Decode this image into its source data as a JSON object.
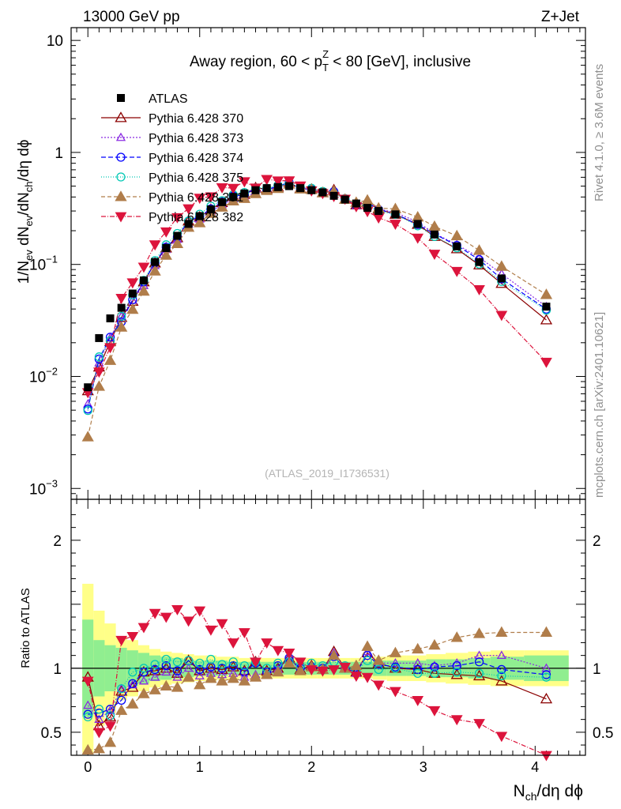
{
  "header": {
    "left": "13000 GeV pp",
    "right": "Z+Jet"
  },
  "side_labels": {
    "rivet": "Rivet 4.1.0, ≥ 3.6M events",
    "mcplots": "mcplots.cern.ch [arXiv:2401.10621]"
  },
  "colors": {
    "atlas": "#000000",
    "p370": "#8b0000",
    "p373": "#8a2be2",
    "p374": "#0000ff",
    "p375": "#00c8b4",
    "p381": "#b07d4a",
    "p382": "#dc143c",
    "band_inner": "#90ee90",
    "band_outer": "#ffff88"
  },
  "chart_data": {
    "type": "scatter",
    "title_parts": {
      "pre": "Away region, 60 < p",
      "sub": "T",
      "sup": "Z",
      "post": " < 80 [GeV], inclusive"
    },
    "watermark": "(ATLAS_2019_I1736531)",
    "xlabel": {
      "main": "N",
      "sub": "ch",
      "post": "/dη dϕ"
    },
    "ylabel": {
      "a": "1/N",
      "a_sub": "ev",
      "b": " dN",
      "b_sub": "ev",
      "c": "/dN",
      "c_sub": "ch",
      "d": "/dη dϕ"
    },
    "ratio_ylabel": "Ratio to ATLAS",
    "xlim": [
      -0.15,
      4.45
    ],
    "ylim_main": [
      0.0008,
      13
    ],
    "ylim_ratio": [
      0.32,
      2.32
    ],
    "x_ticks": [
      "0",
      "1",
      "2",
      "3",
      "4"
    ],
    "y_ticks_main": [
      {
        "v": 10,
        "base": "10",
        "exp": ""
      },
      {
        "v": 1,
        "base": "1",
        "exp": ""
      },
      {
        "v": 0.1,
        "base": "10",
        "exp": "−1"
      },
      {
        "v": 0.01,
        "base": "10",
        "exp": "−2"
      },
      {
        "v": 0.001,
        "base": "10",
        "exp": "−3"
      }
    ],
    "y_ticks_ratio": [
      "0.5",
      "1",
      "2"
    ],
    "x": [
      0,
      0.1,
      0.2,
      0.3,
      0.4,
      0.5,
      0.6,
      0.7,
      0.8,
      0.9,
      1.0,
      1.1,
      1.2,
      1.3,
      1.4,
      1.5,
      1.6,
      1.7,
      1.8,
      1.9,
      2.0,
      2.1,
      2.2,
      2.3,
      2.4,
      2.5,
      2.6,
      2.75,
      2.95,
      3.1,
      3.3,
      3.5,
      3.7,
      4.1
    ],
    "atlas": [
      0.008,
      0.022,
      0.033,
      0.041,
      0.055,
      0.072,
      0.105,
      0.14,
      0.18,
      0.23,
      0.27,
      0.31,
      0.36,
      0.4,
      0.43,
      0.46,
      0.48,
      0.49,
      0.5,
      0.48,
      0.46,
      0.44,
      0.41,
      0.38,
      0.35,
      0.32,
      0.3,
      0.28,
      0.23,
      0.185,
      0.145,
      0.105,
      0.075,
      0.042
    ],
    "band_inner": [
      0.38,
      0.22,
      0.18,
      0.16,
      0.14,
      0.12,
      0.1,
      0.09,
      0.08,
      0.07,
      0.06,
      0.06,
      0.06,
      0.05,
      0.05,
      0.05,
      0.05,
      0.05,
      0.05,
      0.05,
      0.05,
      0.05,
      0.05,
      0.05,
      0.05,
      0.05,
      0.06,
      0.06,
      0.06,
      0.07,
      0.07,
      0.08,
      0.09,
      0.1
    ],
    "band_outer": [
      0.66,
      0.45,
      0.35,
      0.25,
      0.22,
      0.18,
      0.15,
      0.13,
      0.12,
      0.11,
      0.1,
      0.1,
      0.09,
      0.09,
      0.08,
      0.08,
      0.08,
      0.08,
      0.08,
      0.08,
      0.08,
      0.08,
      0.08,
      0.08,
      0.08,
      0.08,
      0.09,
      0.1,
      0.1,
      0.11,
      0.12,
      0.13,
      0.14,
      0.14
    ],
    "series": [
      {
        "key": "p370",
        "name": "Pythia 6.428 370",
        "marker": "tri-up-open",
        "dash": "",
        "ratio": [
          0.93,
          0.55,
          0.62,
          0.82,
          0.85,
          0.97,
          0.98,
          1.0,
          0.96,
          1.06,
          0.98,
          1.0,
          0.99,
          1.01,
          0.98,
          1.05,
          0.98,
          1.0,
          1.08,
          0.99,
          1.02,
          0.99,
          1.13,
          1.0,
          0.97,
          1.12,
          1.04,
          1.0,
          0.99,
          0.96,
          0.95,
          0.94,
          0.9,
          0.76
        ]
      },
      {
        "key": "p373",
        "name": "Pythia 6.428 373",
        "marker": "tri-up-open-small",
        "dash": "2,2",
        "ratio": [
          0.71,
          0.6,
          0.67,
          0.84,
          0.87,
          0.9,
          0.93,
          0.97,
          0.93,
          1.0,
          0.94,
          0.96,
          0.95,
          0.96,
          0.93,
          0.95,
          0.96,
          0.99,
          1.08,
          0.98,
          1.02,
          0.99,
          1.12,
          1.0,
          0.96,
          1.13,
          1.04,
          1.04,
          1.04,
          1.02,
          1.04,
          1.1,
          1.1,
          1.0
        ]
      },
      {
        "key": "p374",
        "name": "Pythia 6.428 374",
        "marker": "circle-open",
        "dash": "6,3",
        "ratio": [
          0.64,
          0.65,
          0.68,
          0.75,
          0.88,
          0.97,
          0.99,
          1.02,
          0.98,
          1.06,
          0.99,
          1.01,
          1.0,
          1.02,
          0.97,
          1.04,
          0.97,
          1.02,
          1.08,
          1.0,
          1.01,
          1.0,
          1.09,
          1.0,
          0.97,
          1.1,
          1.03,
          1.01,
          0.99,
          1.01,
          1.02,
          1.05,
          0.99,
          0.95
        ]
      },
      {
        "key": "p375",
        "name": "Pythia 6.428 375",
        "marker": "circle-open-cyan",
        "dash": "1,2",
        "ratio": [
          0.62,
          0.68,
          0.63,
          0.84,
          0.97,
          1.0,
          1.03,
          1.07,
          1.05,
          1.06,
          1.04,
          1.07,
          1.03,
          1.05,
          1.02,
          1.05,
          1.0,
          1.04,
          1.05,
          1.02,
          1.04,
          1.02,
          1.05,
          1.02,
          0.98,
          1.06,
          0.99,
          1.0,
          0.96,
          0.96,
          0.97,
          0.96,
          0.94,
          0.93
        ]
      },
      {
        "key": "p381",
        "name": "Pythia 6.428 381",
        "marker": "tri-up-filled",
        "dash": "5,3",
        "ratio": [
          0.36,
          0.37,
          0.42,
          0.67,
          0.72,
          0.8,
          0.83,
          0.86,
          0.85,
          0.93,
          0.87,
          0.92,
          0.9,
          0.92,
          0.9,
          0.93,
          0.95,
          0.97,
          1.04,
          0.98,
          1.01,
          0.99,
          1.1,
          1.0,
          1.02,
          1.17,
          1.06,
          1.12,
          1.15,
          1.18,
          1.24,
          1.27,
          1.28,
          1.28
        ]
      },
      {
        "key": "p382",
        "name": "Pythia 6.428 382",
        "marker": "tri-down-filled",
        "dash": "6,2,1,2",
        "ratio": [
          0.9,
          0.5,
          0.55,
          1.22,
          1.25,
          1.32,
          1.43,
          1.4,
          1.46,
          1.37,
          1.45,
          1.3,
          1.35,
          1.2,
          1.28,
          1.05,
          1.2,
          1.14,
          1.12,
          1.05,
          0.99,
          0.98,
          0.99,
          1.01,
          0.94,
          0.93,
          0.87,
          0.82,
          0.75,
          0.67,
          0.6,
          0.57,
          0.47,
          0.32
        ]
      }
    ]
  }
}
